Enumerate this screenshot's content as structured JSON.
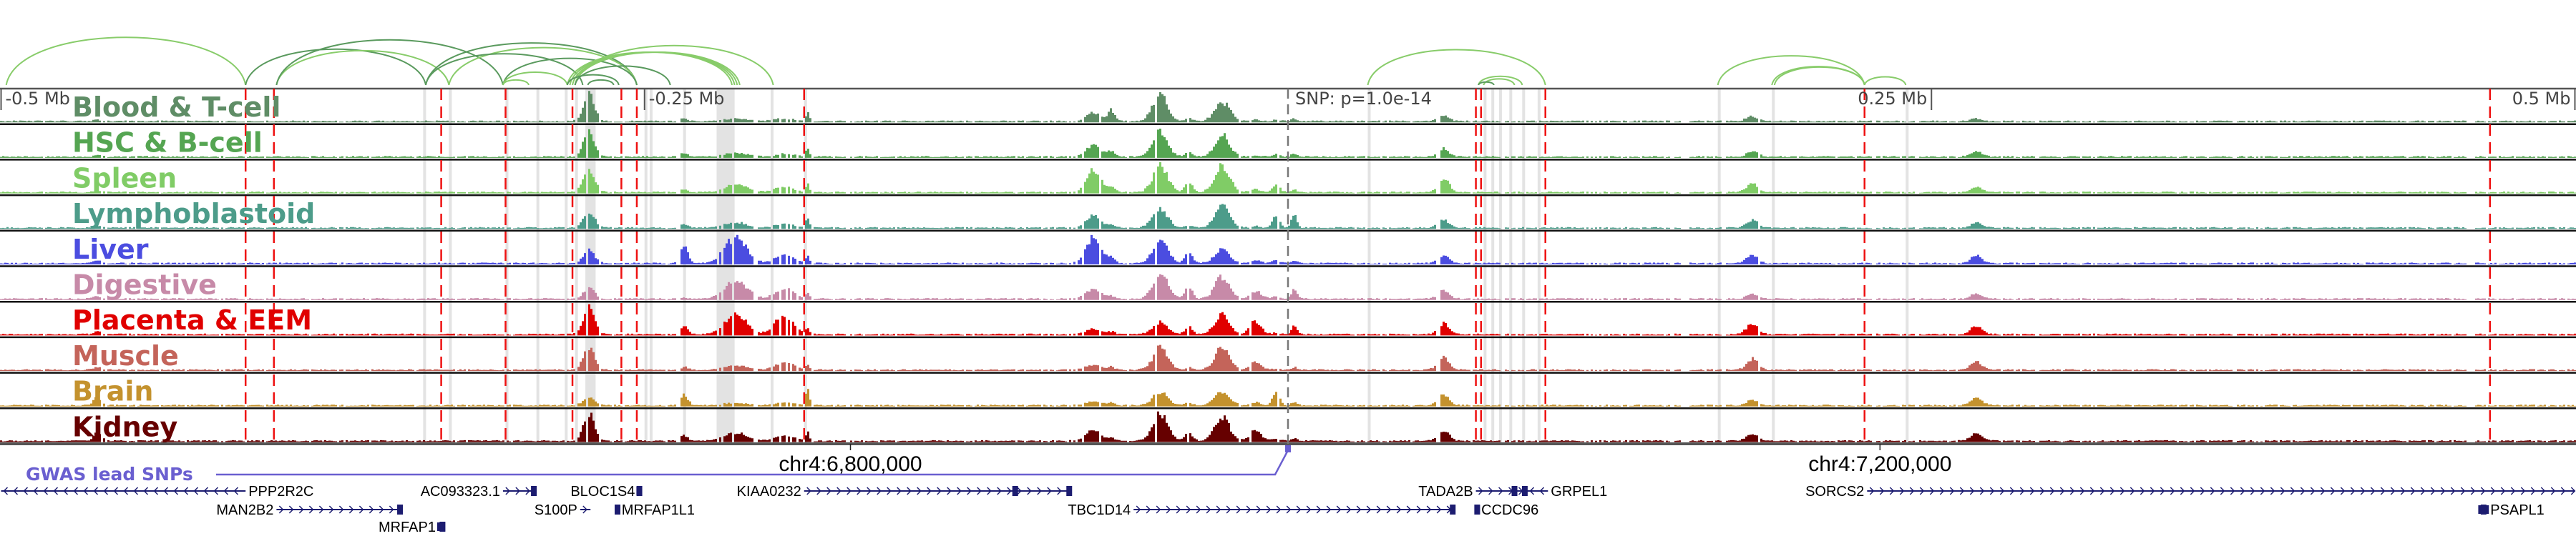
{
  "browser": {
    "kb_range": [
      -500,
      500
    ]
  },
  "axis": {
    "ticks": [
      {
        "label": "-0.5 Mb",
        "kb": -500,
        "align": "start"
      },
      {
        "label": "-0.25 Mb",
        "kb": -250,
        "align": "start"
      },
      {
        "label": "0.25 Mb",
        "kb": 250,
        "align": "end"
      },
      {
        "label": "0.5 Mb",
        "kb": 500,
        "align": "end"
      }
    ],
    "snp_label": "SNP: p=1.0e-14"
  },
  "coordinates": [
    {
      "label": "chr4:6,800,000",
      "kb": -170
    },
    {
      "label": "chr4:7,200,000",
      "kb": 230
    }
  ],
  "tracks": [
    {
      "name": "Blood & T-cell",
      "color": "#5f8d66"
    },
    {
      "name": "HSC & B-cell",
      "color": "#55a552"
    },
    {
      "name": "Spleen",
      "color": "#80cc66"
    },
    {
      "name": "Lymphoblastoid",
      "color": "#4d9c8a"
    },
    {
      "name": "Liver",
      "color": "#4b4de0"
    },
    {
      "name": "Digestive",
      "color": "#c78aa8"
    },
    {
      "name": "Placenta & EEM",
      "color": "#e00000"
    },
    {
      "name": "Muscle",
      "color": "#c4645a"
    },
    {
      "name": "Brain",
      "color": "#c4922e"
    },
    {
      "name": "Kidney",
      "color": "#660000"
    }
  ],
  "peaks": [
    {
      "kb": -272,
      "width_kb": 3,
      "amp": [
        1,
        0.9,
        0.85,
        0.6,
        0.5,
        0.4,
        1,
        0.8,
        0.3,
        1
      ]
    },
    {
      "kb": -235,
      "width_kb": 2,
      "amp": [
        0.1,
        0.15,
        0.1,
        0.15,
        0.7,
        0.05,
        0.3,
        0.1,
        0.4,
        0.2
      ]
    },
    {
      "kb": -215,
      "width_kb": 6,
      "amp": [
        0.1,
        0.15,
        0.3,
        0.2,
        0.95,
        0.7,
        0.75,
        0.15,
        0.1,
        0.3
      ]
    },
    {
      "kb": -196,
      "width_kb": 5,
      "amp": [
        0.1,
        0.1,
        0.2,
        0.15,
        0.3,
        0.4,
        0.7,
        0.3,
        0.1,
        0.2
      ]
    },
    {
      "kb": -187,
      "width_kb": 1,
      "amp": [
        0.3,
        0.3,
        0.3,
        0.4,
        0.3,
        0.2,
        0.2,
        0.2,
        0.6,
        0.3
      ]
    },
    {
      "kb": -76,
      "width_kb": 4,
      "amp": [
        0.3,
        0.45,
        0.8,
        0.45,
        1,
        0.4,
        0.2,
        0.2,
        0.15,
        0.4
      ]
    },
    {
      "kb": -69,
      "width_kb": 2,
      "amp": [
        0.4,
        0.2,
        0.2,
        0.1,
        0.2,
        0.1,
        0.1,
        0.1,
        0.1,
        0.1
      ]
    },
    {
      "kb": -50,
      "width_kb": 4,
      "amp": [
        1,
        0.9,
        1,
        0.7,
        0.9,
        1,
        0.45,
        0.8,
        0.5,
        1
      ]
    },
    {
      "kb": -39,
      "width_kb": 2,
      "amp": [
        0.1,
        0.15,
        0.4,
        0.1,
        0.4,
        0.5,
        0.3,
        0.1,
        0.1,
        0.3
      ]
    },
    {
      "kb": -26,
      "width_kb": 4,
      "amp": [
        0.75,
        0.8,
        1,
        0.8,
        0.5,
        0.8,
        0.7,
        0.8,
        0.5,
        0.9
      ]
    },
    {
      "kb": -13,
      "width_kb": 3,
      "amp": [
        0.05,
        0.05,
        0.1,
        0.05,
        0.1,
        0.3,
        0.5,
        0.3,
        0.1,
        0.4
      ]
    },
    {
      "kb": -5,
      "width_kb": 2,
      "amp": [
        0.05,
        0.1,
        0.3,
        0.45,
        0.1,
        0.1,
        0.05,
        0.05,
        0.45,
        0.1
      ]
    },
    {
      "kb": 2,
      "width_kb": 1.5,
      "amp": [
        0.1,
        0.1,
        0.1,
        0.5,
        0.1,
        0.4,
        0.3,
        0.1,
        0.1,
        0.1
      ]
    },
    {
      "kb": 60,
      "width_kb": 3,
      "amp": [
        0.2,
        0.3,
        0.5,
        0.3,
        0.3,
        0.3,
        0.4,
        0.5,
        0.4,
        0.4
      ]
    },
    {
      "kb": 180,
      "width_kb": 3,
      "amp": [
        0.2,
        0.2,
        0.3,
        0.3,
        0.3,
        0.2,
        0.4,
        0.4,
        0.2,
        0.3
      ]
    },
    {
      "kb": 267,
      "width_kb": 3,
      "amp": [
        0.1,
        0.2,
        0.2,
        0.2,
        0.3,
        0.2,
        0.3,
        0.3,
        0.3,
        0.3
      ]
    },
    {
      "kb": -463,
      "width_kb": 2,
      "amp": [
        0.05,
        0.05,
        0.05,
        0.05,
        0.1,
        0.1,
        0.1,
        0.1,
        0.3,
        0.35
      ]
    }
  ],
  "red_lines_kb": [
    -405,
    -394,
    -329,
    -304,
    -278,
    -259,
    -253,
    -188,
    73,
    75,
    100,
    224,
    467
  ],
  "highlight_kb": [
    [
      -336,
      -335
    ],
    [
      -326,
      -325
    ],
    [
      -304,
      -303
    ],
    [
      -292,
      -291
    ],
    [
      -281,
      -280
    ],
    [
      -277,
      -276
    ],
    [
      -273,
      -269
    ],
    [
      -250,
      -249
    ],
    [
      -248,
      -247
    ],
    [
      -235,
      -234
    ],
    [
      -222,
      -215
    ],
    [
      -201,
      -200
    ],
    [
      -188,
      -187
    ],
    [
      31,
      32
    ],
    [
      76,
      77
    ],
    [
      79,
      80
    ],
    [
      82,
      83
    ],
    [
      86,
      87
    ],
    [
      91,
      92
    ],
    [
      97,
      98
    ],
    [
      167,
      168
    ],
    [
      188,
      189
    ],
    [
      240,
      241
    ]
  ],
  "arcs": [
    {
      "from": -498,
      "to": -405,
      "tone": "light"
    },
    {
      "from": -405,
      "to": -335,
      "tone": "dark"
    },
    {
      "from": -393,
      "to": -326,
      "tone": "light"
    },
    {
      "from": -393,
      "to": -305,
      "tone": "dark"
    },
    {
      "from": -335,
      "to": -253,
      "tone": "dark"
    },
    {
      "from": -326,
      "to": -253,
      "tone": "light"
    },
    {
      "from": -335,
      "to": -274,
      "tone": "dark"
    },
    {
      "from": -305,
      "to": -253,
      "tone": "dark"
    },
    {
      "from": -305,
      "to": -280,
      "tone": "light"
    },
    {
      "from": -305,
      "to": -295,
      "tone": "light"
    },
    {
      "from": -280,
      "to": -216,
      "tone": "light"
    },
    {
      "from": -279,
      "to": -215,
      "tone": "light"
    },
    {
      "from": -278,
      "to": -214,
      "tone": "light"
    },
    {
      "from": -277,
      "to": -213,
      "tone": "light"
    },
    {
      "from": -277,
      "to": -200,
      "tone": "light"
    },
    {
      "from": -280,
      "to": -260,
      "tone": "dark"
    },
    {
      "from": -277,
      "to": -240,
      "tone": "dark"
    },
    {
      "from": -272,
      "to": -262,
      "tone": "dark"
    },
    {
      "from": 31,
      "to": 100,
      "tone": "light"
    },
    {
      "from": 74,
      "to": 91,
      "tone": "light"
    },
    {
      "from": 76,
      "to": 88,
      "tone": "light"
    },
    {
      "from": 74,
      "to": 80,
      "tone": "dark"
    },
    {
      "from": 167,
      "to": 224,
      "tone": "light"
    },
    {
      "from": 188,
      "to": 224,
      "tone": "light"
    },
    {
      "from": 189,
      "to": 224,
      "tone": "light"
    },
    {
      "from": 224,
      "to": 240,
      "tone": "light"
    }
  ],
  "arc_colors": {
    "light": "#88cc6a",
    "dark": "#5a9a5e"
  },
  "gwas": {
    "label": "GWAS lead SNPs",
    "snp_kb": 0,
    "color": "#6a5fd0"
  },
  "gene_color": "#1c1c70",
  "genes": [
    {
      "name": "PPP2R2C",
      "start": -500,
      "end": -405,
      "strand": "-",
      "row": 0,
      "label_side": "right",
      "exons": []
    },
    {
      "name": "AC093323.1",
      "start": -305,
      "end": -293,
      "strand": "+",
      "row": 0,
      "label_side": "left",
      "exons": [
        -293
      ]
    },
    {
      "name": "BLOC1S4",
      "start": -252.6,
      "end": -251.6,
      "strand": "+",
      "row": 0,
      "label_side": "left",
      "exons": [
        -252
      ]
    },
    {
      "name": "KIAA0232",
      "start": -188,
      "end": -84,
      "strand": "+",
      "row": 0,
      "label_side": "left",
      "exons": [
        -106,
        -85
      ]
    },
    {
      "name": "TADA2B",
      "start": 73,
      "end": 93,
      "strand": "+",
      "row": 0,
      "label_side": "left",
      "exons": [
        88,
        92
      ]
    },
    {
      "name": "GRPEL1",
      "start": 93,
      "end": 101,
      "strand": "-",
      "row": 0,
      "label_side": "right",
      "exons": []
    },
    {
      "name": "SORCS2",
      "start": 225,
      "end": 500,
      "strand": "+",
      "row": 0,
      "label_side": "left",
      "exons": []
    },
    {
      "name": "MAN2B2",
      "start": -393,
      "end": -345,
      "strand": "+",
      "row": 1,
      "label_side": "left",
      "exons": [
        -345
      ]
    },
    {
      "name": "S100P",
      "start": -275,
      "end": -271,
      "strand": "+",
      "row": 1,
      "label_side": "left",
      "exons": []
    },
    {
      "name": "MRFAP1L1",
      "start": -261,
      "end": -260,
      "strand": "-",
      "row": 1,
      "label_side": "right",
      "exons": [
        -260.5
      ]
    },
    {
      "name": "TBC1D14",
      "start": -60,
      "end": 65,
      "strand": "+",
      "row": 1,
      "label_side": "left",
      "exons": [
        64
      ]
    },
    {
      "name": "CCDC96",
      "start": 73,
      "end": 74,
      "strand": "-",
      "row": 1,
      "label_side": "right",
      "exons": [
        73.5
      ]
    },
    {
      "name": "PSAPL1",
      "start": 463,
      "end": 466,
      "strand": "+",
      "row": 1,
      "label_side": "right",
      "exons": [
        464.5
      ]
    },
    {
      "name": "MRFAP1",
      "start": -330,
      "end": -328,
      "strand": "+",
      "row": 2,
      "label_side": "left",
      "exons": [
        -328.5
      ]
    }
  ]
}
